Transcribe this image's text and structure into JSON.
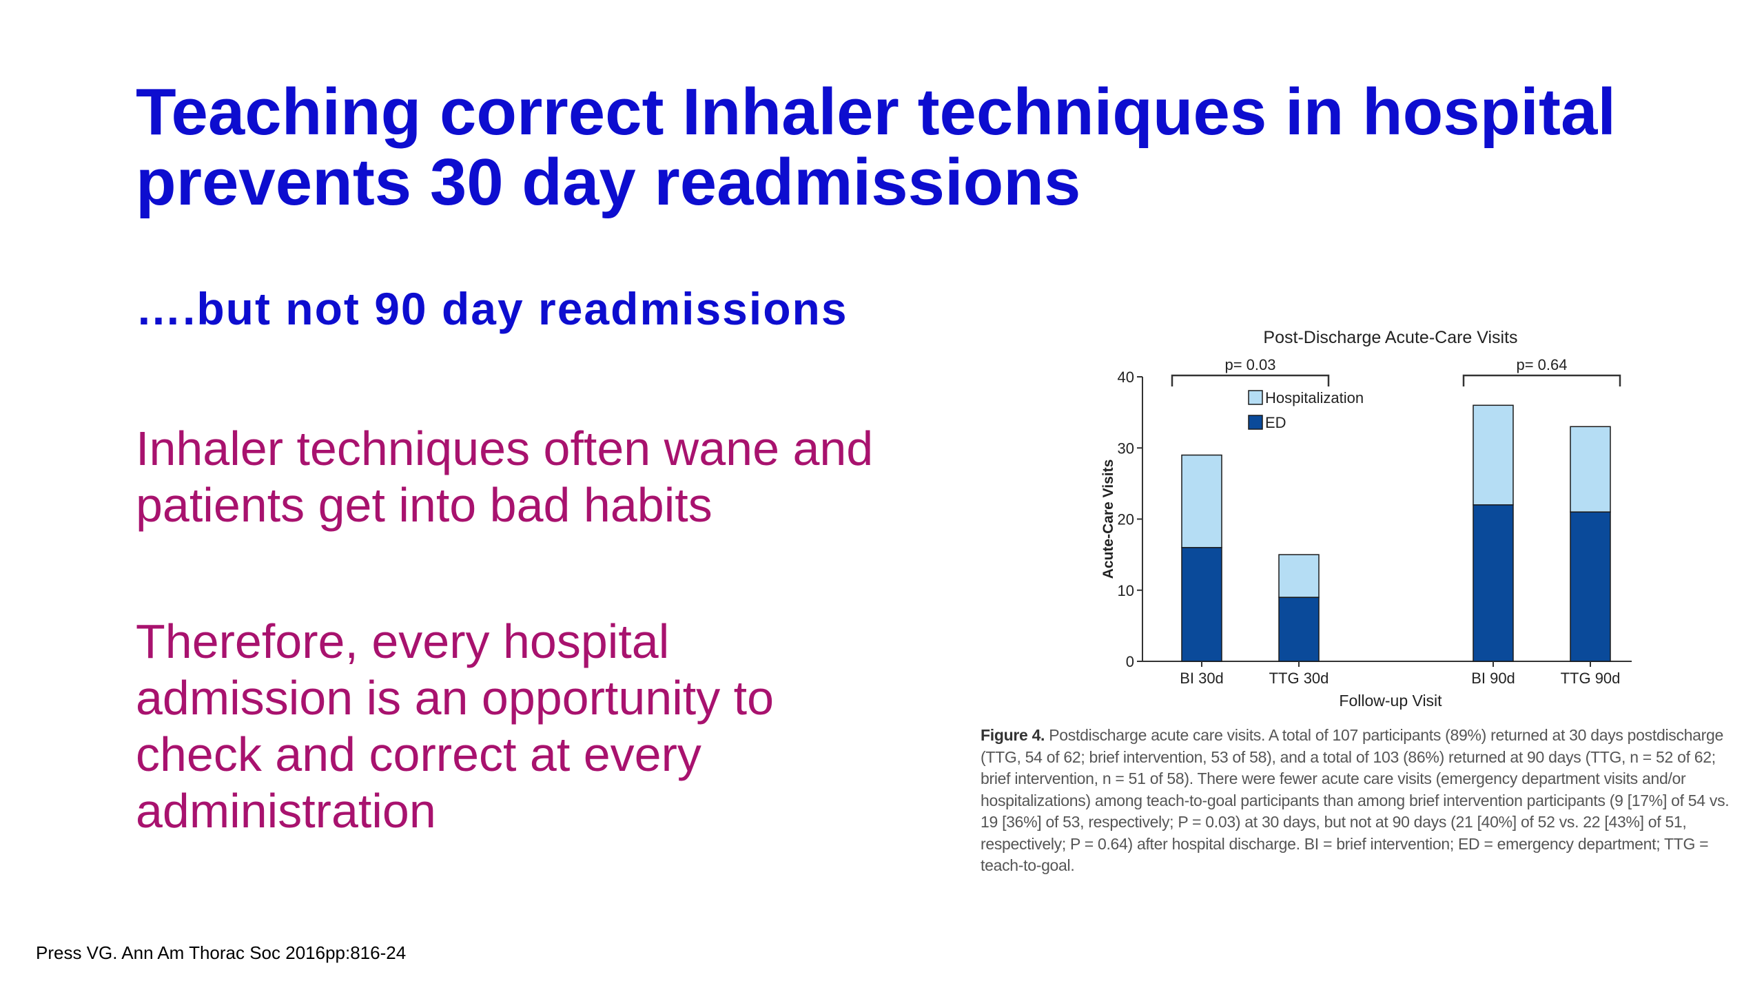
{
  "slide": {
    "title_line1": "Teaching correct Inhaler techniques in hospital",
    "title_line2": "prevents 30 day readmissions",
    "subtitle": "….but not 90 day readmissions",
    "para1_line1": "Inhaler techniques often wane and",
    "para1_line2": "patients get into bad habits",
    "para2_line1": "Therefore, every hospital",
    "para2_line2": "admission is an opportunity to",
    "para2_line3": "check and correct at every",
    "para2_line4": "administration",
    "citation": "Press VG. Ann Am Thorac Soc 2016pp:816-24",
    "caption_label": "Figure 4.",
    "caption_text": "Postdischarge acute care visits. A total of 107 participants (89%) returned at 30 days postdischarge (TTG, 54 of 62; brief intervention, 53 of 58), and a total of 103 (86%) returned at 90 days (TTG, n = 52 of 62; brief intervention, n = 51 of 58). There were fewer acute care visits (emergency department visits and/or hospitalizations) among teach-to-goal participants than among brief intervention participants (9 [17%] of 54 vs. 19 [36%] of 53, respectively; P = 0.03) at 30 days, but not at 90 days (21 [40%] of 52 vs. 22 [43%] of 51, respectively; P = 0.64) after hospital discharge. BI = brief intervention; ED = emergency department; TTG = teach-to-goal."
  },
  "chart_data": {
    "type": "bar",
    "stacked": true,
    "title": "Post-Discharge Acute-Care Visits",
    "xlabel": "Follow-up Visit",
    "ylabel": "Acute-Care Visits",
    "ylim": [
      0,
      40
    ],
    "yticks": [
      0,
      10,
      20,
      30,
      40
    ],
    "categories": [
      "BI 30d",
      "TTG 30d",
      "BI 90d",
      "TTG 90d"
    ],
    "series": [
      {
        "name": "ED",
        "color": "#0a4a9a",
        "values": [
          16,
          9,
          22,
          21
        ]
      },
      {
        "name": "Hospitalization",
        "color": "#b5ddf4",
        "values": [
          13,
          6,
          14,
          12
        ]
      }
    ],
    "legend_order": [
      "Hospitalization",
      "ED"
    ],
    "legend_position": "top-center",
    "annotations": [
      {
        "text": "p= 0.03",
        "from": 0,
        "to": 1
      },
      {
        "text": "p= 0.64",
        "from": 2,
        "to": 3
      }
    ]
  }
}
